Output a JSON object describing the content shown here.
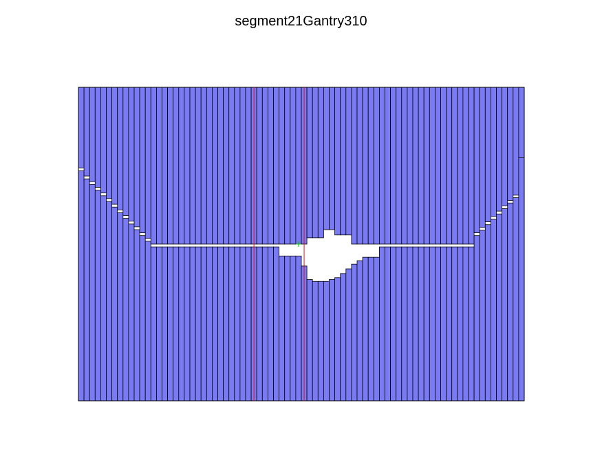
{
  "figure": {
    "title": "segment21Gantry310"
  },
  "colors": {
    "leaf_fill": "#7a7af5",
    "leaf_edge": "#000000",
    "aperture": "#ffffff",
    "jaw_line": "#e0101a",
    "isocenter_marker": "#00c000"
  },
  "mlc": {
    "leaf_pairs": 80,
    "upper_bank_rows": [
      0.257,
      0.283,
      0.301,
      0.319,
      0.337,
      0.355,
      0.373,
      0.391,
      0.409,
      0.427,
      0.445,
      0.464,
      0.482,
      0.5,
      0.5,
      0.5,
      0.5,
      0.5,
      0.5,
      0.5,
      0.5,
      0.5,
      0.5,
      0.5,
      0.5,
      0.5,
      0.5,
      0.5,
      0.5,
      0.5,
      0.5,
      0.5,
      0.5,
      0.5,
      0.5,
      0.5,
      0.5,
      0.5,
      0.5,
      0.5,
      0.5,
      0.48,
      0.48,
      0.48,
      0.454,
      0.454,
      0.471,
      0.471,
      0.471,
      0.5,
      0.5,
      0.5,
      0.5,
      0.5,
      0.5,
      0.5,
      0.5,
      0.5,
      0.5,
      0.5,
      0.5,
      0.5,
      0.5,
      0.5,
      0.5,
      0.5,
      0.5,
      0.5,
      0.5,
      0.5,
      0.5,
      0.464,
      0.447,
      0.429,
      0.412,
      0.395,
      0.378,
      0.361,
      0.344,
      0.326
    ],
    "lower_bank_rows": [
      0.266,
      0.292,
      0.31,
      0.328,
      0.346,
      0.364,
      0.382,
      0.4,
      0.418,
      0.436,
      0.454,
      0.473,
      0.491,
      0.509,
      0.509,
      0.509,
      0.509,
      0.509,
      0.509,
      0.509,
      0.509,
      0.509,
      0.509,
      0.509,
      0.509,
      0.509,
      0.509,
      0.509,
      0.509,
      0.509,
      0.509,
      0.509,
      0.509,
      0.509,
      0.509,
      0.509,
      0.538,
      0.538,
      0.538,
      0.538,
      0.57,
      0.613,
      0.619,
      0.619,
      0.619,
      0.613,
      0.607,
      0.594,
      0.579,
      0.564,
      0.553,
      0.542,
      0.542,
      0.542,
      0.509,
      0.509,
      0.509,
      0.509,
      0.509,
      0.509,
      0.509,
      0.509,
      0.509,
      0.509,
      0.509,
      0.509,
      0.509,
      0.509,
      0.509,
      0.509,
      0.509,
      0.473,
      0.456,
      0.438,
      0.421,
      0.404,
      0.387,
      0.369,
      0.352,
      0.225
    ],
    "jaw_lines_leaf_index": [
      31.5,
      40.5
    ],
    "isocenter_leaf_index": 39.5,
    "isocenter_row": 0.5
  }
}
